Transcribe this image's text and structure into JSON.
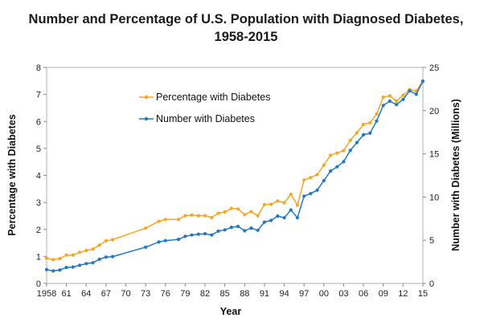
{
  "chart_data": {
    "type": "line",
    "title_line1": "Number and Percentage of U.S. Population with Diagnosed Diabetes,",
    "title_line2": "1958-2015",
    "xlabel": "Year",
    "ylabel_left": "Percentage with Diabetes",
    "ylabel_right": "Number with Diabetes (Millions)",
    "xlim": [
      1958,
      2015
    ],
    "ylim_left": [
      0,
      8
    ],
    "ylim_right": [
      0,
      25
    ],
    "x_ticks": [
      1958,
      1961,
      1964,
      1967,
      1970,
      1973,
      1976,
      1979,
      1982,
      1985,
      1988,
      1991,
      1994,
      1997,
      2000,
      2003,
      2006,
      2009,
      2012,
      2015
    ],
    "x_tick_labels": [
      "1958",
      "61",
      "64",
      "67",
      "70",
      "73",
      "76",
      "79",
      "82",
      "85",
      "88",
      "91",
      "94",
      "97",
      "00",
      "03",
      "06",
      "09",
      "12",
      "15"
    ],
    "y_left_ticks": [
      "0",
      "1",
      "2",
      "3",
      "4",
      "5",
      "6",
      "7",
      "8"
    ],
    "y_right_ticks": [
      "0",
      "5",
      "10",
      "15",
      "20",
      "25"
    ],
    "series": [
      {
        "name": "Percentage with Diabetes",
        "axis": "left",
        "color": "#f5a623",
        "x": [
          1958,
          1959,
          1960,
          1961,
          1962,
          1963,
          1964,
          1965,
          1966,
          1967,
          1968,
          1973,
          1975,
          1976,
          1978,
          1979,
          1980,
          1981,
          1982,
          1983,
          1984,
          1985,
          1986,
          1987,
          1988,
          1989,
          1990,
          1991,
          1992,
          1993,
          1994,
          1995,
          1996,
          1997,
          1998,
          1999,
          2000,
          2001,
          2002,
          2003,
          2004,
          2005,
          2006,
          2007,
          2008,
          2009,
          2010,
          2011,
          2012,
          2013,
          2014,
          2015
        ],
        "values": [
          0.93,
          0.88,
          0.92,
          1.05,
          1.05,
          1.15,
          1.22,
          1.27,
          1.42,
          1.58,
          1.62,
          2.05,
          2.3,
          2.37,
          2.37,
          2.51,
          2.53,
          2.51,
          2.51,
          2.44,
          2.6,
          2.65,
          2.78,
          2.76,
          2.55,
          2.66,
          2.51,
          2.92,
          2.93,
          3.05,
          2.99,
          3.3,
          2.9,
          3.83,
          3.92,
          4.03,
          4.38,
          4.75,
          4.83,
          4.92,
          5.3,
          5.58,
          5.89,
          5.95,
          6.28,
          6.9,
          6.95,
          6.75,
          6.97,
          7.18,
          7.13,
          7.5
        ]
      },
      {
        "name": "Number with Diabetes",
        "axis": "right",
        "color": "#1f78c1",
        "x": [
          1958,
          1959,
          1960,
          1961,
          1962,
          1963,
          1964,
          1965,
          1966,
          1967,
          1968,
          1973,
          1975,
          1976,
          1978,
          1979,
          1980,
          1981,
          1982,
          1983,
          1984,
          1985,
          1986,
          1987,
          1988,
          1989,
          1990,
          1991,
          1992,
          1993,
          1994,
          1995,
          1996,
          1997,
          1998,
          1999,
          2000,
          2001,
          2002,
          2003,
          2004,
          2005,
          2006,
          2007,
          2008,
          2009,
          2010,
          2011,
          2012,
          2013,
          2014,
          2015
        ],
        "values": [
          1.6,
          1.45,
          1.55,
          1.85,
          1.9,
          2.1,
          2.3,
          2.4,
          2.8,
          3.05,
          3.1,
          4.2,
          4.8,
          4.95,
          5.1,
          5.45,
          5.6,
          5.7,
          5.75,
          5.6,
          6.05,
          6.2,
          6.5,
          6.6,
          6.1,
          6.4,
          6.15,
          7.1,
          7.3,
          7.8,
          7.6,
          8.5,
          7.6,
          10.1,
          10.4,
          10.8,
          11.9,
          13.0,
          13.5,
          14.1,
          15.4,
          16.3,
          17.2,
          17.4,
          18.8,
          20.6,
          21.1,
          20.7,
          21.3,
          22.3,
          21.9,
          23.4
        ]
      }
    ],
    "legend": "upper-left"
  }
}
